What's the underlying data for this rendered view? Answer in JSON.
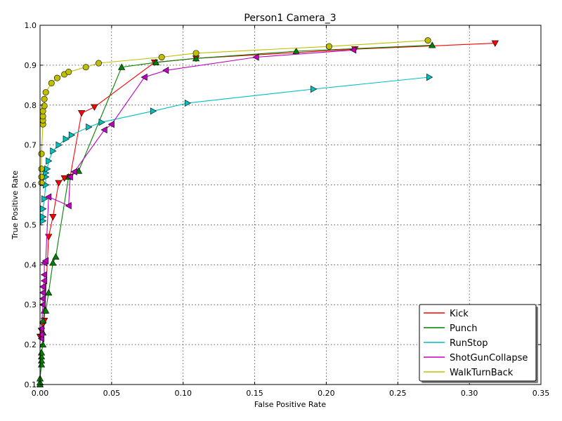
{
  "chart_data": {
    "type": "line",
    "title": "Person1 Camera_3",
    "xlabel": "False Positive Rate",
    "ylabel": "True Positive Rate",
    "xlim": [
      0.0,
      0.35
    ],
    "ylim": [
      0.1,
      1.0
    ],
    "xticks": [
      "0.00",
      "0.05",
      "0.10",
      "0.15",
      "0.20",
      "0.25",
      "0.30",
      "0.35"
    ],
    "yticks": [
      "0.1",
      "0.2",
      "0.3",
      "0.4",
      "0.5",
      "0.6",
      "0.7",
      "0.8",
      "0.9",
      "1.0"
    ],
    "grid": true,
    "legend_position": "bottom-right",
    "series": [
      {
        "name": "Kick",
        "color": "#ff0000",
        "marker": "triangle-down",
        "x": [
          0.0,
          0.001,
          0.002,
          0.003,
          0.006,
          0.009,
          0.013,
          0.017,
          0.021,
          0.029,
          0.038,
          0.08,
          0.109,
          0.22,
          0.318
        ],
        "y": [
          0.22,
          0.235,
          0.25,
          0.26,
          0.47,
          0.52,
          0.605,
          0.617,
          0.62,
          0.78,
          0.795,
          0.907,
          0.917,
          0.94,
          0.955
        ]
      },
      {
        "name": "Punch",
        "color": "#008000",
        "marker": "triangle-up",
        "x": [
          0.0,
          0.0,
          0.0,
          0.001,
          0.001,
          0.001,
          0.001,
          0.002,
          0.002,
          0.002,
          0.003,
          0.004,
          0.006,
          0.009,
          0.011,
          0.02,
          0.027,
          0.057,
          0.081,
          0.109,
          0.179,
          0.274
        ],
        "y": [
          0.1,
          0.105,
          0.115,
          0.15,
          0.16,
          0.17,
          0.18,
          0.2,
          0.23,
          0.26,
          0.285,
          0.285,
          0.33,
          0.405,
          0.42,
          0.62,
          0.635,
          0.895,
          0.907,
          0.917,
          0.935,
          0.95
        ]
      },
      {
        "name": "RunStop",
        "color": "#00bfbf",
        "marker": "triangle-right",
        "x": [
          0.002,
          0.002,
          0.002,
          0.003,
          0.004,
          0.004,
          0.004,
          0.005,
          0.006,
          0.009,
          0.013,
          0.018,
          0.022,
          0.034,
          0.043,
          0.079,
          0.103,
          0.191,
          0.272
        ],
        "y": [
          0.51,
          0.52,
          0.54,
          0.565,
          0.6,
          0.62,
          0.63,
          0.64,
          0.66,
          0.685,
          0.7,
          0.715,
          0.725,
          0.745,
          0.757,
          0.785,
          0.805,
          0.84,
          0.87
        ]
      },
      {
        "name": "ShotGunCollapse",
        "color": "#bf00bf",
        "marker": "triangle-left",
        "x": [
          0.001,
          0.001,
          0.001,
          0.002,
          0.002,
          0.002,
          0.002,
          0.003,
          0.003,
          0.003,
          0.004,
          0.006,
          0.02,
          0.021,
          0.024,
          0.045,
          0.05,
          0.073,
          0.088,
          0.151,
          0.219
        ],
        "y": [
          0.215,
          0.225,
          0.24,
          0.3,
          0.315,
          0.33,
          0.345,
          0.36,
          0.375,
          0.405,
          0.41,
          0.57,
          0.548,
          0.62,
          0.633,
          0.738,
          0.752,
          0.87,
          0.887,
          0.92,
          0.938
        ]
      },
      {
        "name": "WalkTurnBack",
        "color": "#bfbf00",
        "marker": "circle",
        "x": [
          0.001,
          0.001,
          0.001,
          0.001,
          0.002,
          0.002,
          0.002,
          0.002,
          0.003,
          0.003,
          0.004,
          0.008,
          0.012,
          0.017,
          0.02,
          0.032,
          0.041,
          0.085,
          0.109,
          0.202,
          0.271
        ],
        "y": [
          0.605,
          0.62,
          0.64,
          0.678,
          0.752,
          0.762,
          0.772,
          0.785,
          0.798,
          0.815,
          0.832,
          0.855,
          0.868,
          0.877,
          0.883,
          0.895,
          0.905,
          0.92,
          0.93,
          0.947,
          0.962
        ]
      }
    ]
  }
}
